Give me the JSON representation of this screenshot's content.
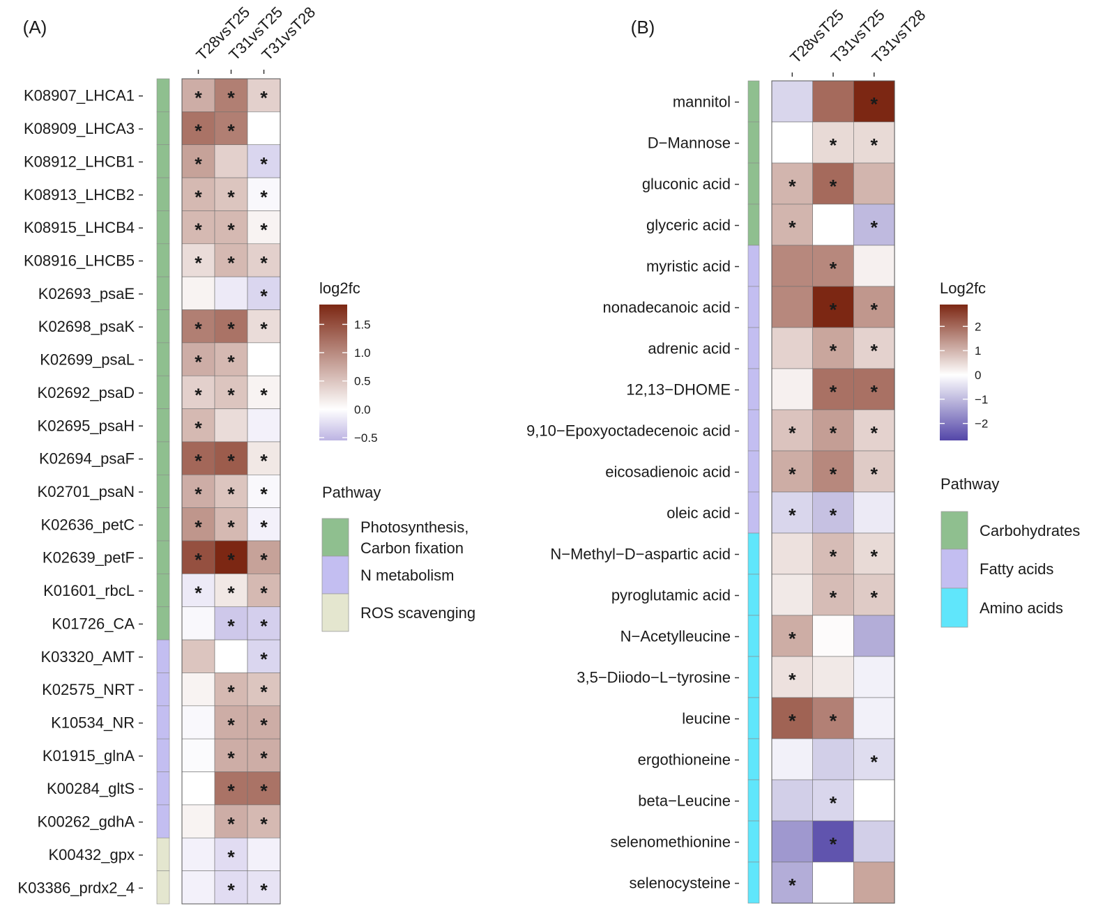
{
  "chart_data": [
    {
      "type": "heatmap",
      "panel_label": "(A)",
      "columns": [
        "T28vsT25",
        "T31vsT25",
        "T31vsT28"
      ],
      "rows": [
        {
          "label": "K08907_LHCA1",
          "pathway": 0,
          "values": [
            0.7,
            1.1,
            0.4
          ],
          "sig": [
            true,
            true,
            true
          ]
        },
        {
          "label": "K08909_LHCA3",
          "pathway": 0,
          "values": [
            1.2,
            1.1,
            0.0
          ],
          "sig": [
            true,
            true,
            false
          ]
        },
        {
          "label": "K08912_LHCB1",
          "pathway": 0,
          "values": [
            0.8,
            0.4,
            -0.3
          ],
          "sig": [
            true,
            false,
            true
          ]
        },
        {
          "label": "K08913_LHCB2",
          "pathway": 0,
          "values": [
            0.6,
            0.5,
            -0.05
          ],
          "sig": [
            true,
            true,
            true
          ]
        },
        {
          "label": "K08915_LHCB4",
          "pathway": 0,
          "values": [
            0.6,
            0.6,
            0.1
          ],
          "sig": [
            true,
            true,
            true
          ]
        },
        {
          "label": "K08916_LHCB5",
          "pathway": 0,
          "values": [
            0.3,
            0.6,
            0.4
          ],
          "sig": [
            true,
            true,
            true
          ]
        },
        {
          "label": "K02693_psaE",
          "pathway": 0,
          "values": [
            0.1,
            -0.15,
            -0.3
          ],
          "sig": [
            false,
            false,
            true
          ]
        },
        {
          "label": "K02698_psaK",
          "pathway": 0,
          "values": [
            1.1,
            1.2,
            0.3
          ],
          "sig": [
            true,
            true,
            true
          ]
        },
        {
          "label": "K02699_psaL",
          "pathway": 0,
          "values": [
            0.7,
            0.6,
            0.0
          ],
          "sig": [
            true,
            true,
            false
          ]
        },
        {
          "label": "K02692_psaD",
          "pathway": 0,
          "values": [
            0.4,
            0.5,
            0.1
          ],
          "sig": [
            true,
            true,
            true
          ]
        },
        {
          "label": "K02695_psaH",
          "pathway": 0,
          "values": [
            0.6,
            0.3,
            -0.1
          ],
          "sig": [
            true,
            false,
            false
          ]
        },
        {
          "label": "K02694_psaF",
          "pathway": 0,
          "values": [
            1.3,
            1.4,
            0.2
          ],
          "sig": [
            true,
            true,
            true
          ]
        },
        {
          "label": "K02701_psaN",
          "pathway": 0,
          "values": [
            0.7,
            0.5,
            -0.05
          ],
          "sig": [
            true,
            true,
            true
          ]
        },
        {
          "label": "K02636_petC",
          "pathway": 0,
          "values": [
            0.9,
            0.6,
            -0.1
          ],
          "sig": [
            true,
            true,
            true
          ]
        },
        {
          "label": "K02639_petF",
          "pathway": 0,
          "values": [
            1.5,
            1.85,
            0.8
          ],
          "sig": [
            true,
            true,
            true
          ]
        },
        {
          "label": "K01601_rbcL",
          "pathway": 0,
          "values": [
            -0.15,
            0.2,
            0.6
          ],
          "sig": [
            true,
            true,
            true
          ]
        },
        {
          "label": "K01726_CA",
          "pathway": 0,
          "values": [
            -0.05,
            -0.4,
            -0.35
          ],
          "sig": [
            false,
            true,
            true
          ]
        },
        {
          "label": "K03320_AMT",
          "pathway": 1,
          "values": [
            0.5,
            0.0,
            -0.3
          ],
          "sig": [
            false,
            false,
            true
          ]
        },
        {
          "label": "K02575_NRT",
          "pathway": 1,
          "values": [
            0.1,
            0.6,
            0.5
          ],
          "sig": [
            false,
            true,
            true
          ]
        },
        {
          "label": "K10534_NR",
          "pathway": 1,
          "values": [
            -0.05,
            0.7,
            0.7
          ],
          "sig": [
            false,
            true,
            true
          ]
        },
        {
          "label": "K01915_glnA",
          "pathway": 1,
          "values": [
            -0.03,
            0.7,
            0.7
          ],
          "sig": [
            false,
            true,
            true
          ]
        },
        {
          "label": "K00284_gltS",
          "pathway": 1,
          "values": [
            0.0,
            1.2,
            1.2
          ],
          "sig": [
            false,
            true,
            true
          ]
        },
        {
          "label": "K00262_gdhA",
          "pathway": 1,
          "values": [
            0.1,
            0.7,
            0.6
          ],
          "sig": [
            false,
            true,
            true
          ]
        },
        {
          "label": "K00432_gpx",
          "pathway": 2,
          "values": [
            -0.1,
            -0.25,
            -0.1
          ],
          "sig": [
            false,
            true,
            false
          ]
        },
        {
          "label": "K03386_prdx2_4",
          "pathway": 2,
          "values": [
            -0.1,
            -0.25,
            -0.2
          ],
          "sig": [
            false,
            true,
            true
          ]
        }
      ],
      "color_scale": {
        "title": "log2fc",
        "low": "#bcb3e2",
        "mid": "#ffffff",
        "high": "#7c2713",
        "domain": [
          -0.55,
          0,
          1.85
        ],
        "ticks": [
          1.5,
          1.0,
          0.5,
          0.0,
          -0.5
        ],
        "tick_labels": [
          "1.5",
          "1.0",
          "0.5",
          "0.0",
          "−0.5"
        ]
      },
      "pathway_legend": {
        "title": "Pathway",
        "entries": [
          {
            "label_lines": [
              "Photosynthesis,",
              "Carbon fixation"
            ],
            "color": "#8fbf8f"
          },
          {
            "label_lines": [
              "N metabolism"
            ],
            "color": "#c3bef1"
          },
          {
            "label_lines": [
              "ROS scavenging"
            ],
            "color": "#e4e6cf"
          }
        ]
      },
      "significance_marker": "*"
    },
    {
      "type": "heatmap",
      "panel_label": "(B)",
      "columns": [
        "T28vsT25",
        "T31vsT25",
        "T31vsT28"
      ],
      "rows": [
        {
          "label": "mannitol",
          "pathway": 0,
          "values": [
            -0.6,
            2.0,
            2.9
          ],
          "sig": [
            false,
            false,
            true
          ]
        },
        {
          "label": "D−Mannose",
          "pathway": 0,
          "values": [
            0.0,
            0.5,
            0.5
          ],
          "sig": [
            false,
            true,
            true
          ]
        },
        {
          "label": "gluconic acid",
          "pathway": 0,
          "values": [
            1.0,
            2.0,
            1.0
          ],
          "sig": [
            true,
            true,
            false
          ]
        },
        {
          "label": "glyceric acid",
          "pathway": 0,
          "values": [
            1.0,
            0.0,
            -1.0
          ],
          "sig": [
            true,
            false,
            true
          ]
        },
        {
          "label": "myristic acid",
          "pathway": 1,
          "values": [
            1.6,
            1.6,
            0.2
          ],
          "sig": [
            false,
            true,
            false
          ]
        },
        {
          "label": "nonadecanoic acid",
          "pathway": 1,
          "values": [
            1.6,
            2.9,
            1.4
          ],
          "sig": [
            false,
            true,
            true
          ]
        },
        {
          "label": "adrenic acid",
          "pathway": 1,
          "values": [
            0.6,
            1.2,
            0.6
          ],
          "sig": [
            false,
            true,
            true
          ]
        },
        {
          "label": "12,13−DHOME",
          "pathway": 1,
          "values": [
            0.2,
            1.9,
            1.9
          ],
          "sig": [
            false,
            true,
            true
          ]
        },
        {
          "label": "9,10−Epoxyoctadecenoic acid",
          "pathway": 1,
          "values": [
            0.8,
            1.3,
            0.6
          ],
          "sig": [
            true,
            true,
            true
          ]
        },
        {
          "label": "eicosadienoic acid",
          "pathway": 1,
          "values": [
            1.1,
            1.6,
            0.7
          ],
          "sig": [
            true,
            true,
            true
          ]
        },
        {
          "label": "oleic acid",
          "pathway": 1,
          "values": [
            -0.6,
            -0.9,
            -0.3
          ],
          "sig": [
            true,
            true,
            false
          ]
        },
        {
          "label": "N−Methyl−D−aspartic acid",
          "pathway": 2,
          "values": [
            0.4,
            0.9,
            0.5
          ],
          "sig": [
            false,
            true,
            true
          ]
        },
        {
          "label": "pyroglutamic acid",
          "pathway": 2,
          "values": [
            0.3,
            0.9,
            0.7
          ],
          "sig": [
            false,
            true,
            true
          ]
        },
        {
          "label": "N−Acetylleucine",
          "pathway": 2,
          "values": [
            1.1,
            0.05,
            -1.2
          ],
          "sig": [
            true,
            false,
            false
          ]
        },
        {
          "label": "3,5−Diiodo−L−tyrosine",
          "pathway": 2,
          "values": [
            0.4,
            0.3,
            -0.2
          ],
          "sig": [
            true,
            false,
            false
          ]
        },
        {
          "label": "leucine",
          "pathway": 2,
          "values": [
            2.1,
            1.7,
            -0.2
          ],
          "sig": [
            true,
            true,
            false
          ]
        },
        {
          "label": "ergothioneine",
          "pathway": 2,
          "values": [
            -0.2,
            -0.7,
            -0.5
          ],
          "sig": [
            false,
            false,
            true
          ]
        },
        {
          "label": "beta−Leucine",
          "pathway": 2,
          "values": [
            -0.7,
            -0.6,
            0.0
          ],
          "sig": [
            false,
            true,
            false
          ]
        },
        {
          "label": "selenomethionine",
          "pathway": 2,
          "values": [
            -1.5,
            -2.5,
            -0.7
          ],
          "sig": [
            false,
            true,
            false
          ]
        },
        {
          "label": "selenocysteine",
          "pathway": 2,
          "values": [
            -1.2,
            0.0,
            1.2
          ],
          "sig": [
            true,
            false,
            false
          ]
        }
      ],
      "color_scale": {
        "title": "Log2fc",
        "low": "#5346a8",
        "mid": "#ffffff",
        "high": "#7c2713",
        "domain": [
          -2.7,
          0,
          2.9
        ],
        "ticks": [
          2,
          1,
          0,
          -1,
          -2
        ],
        "tick_labels": [
          "2",
          "1",
          "0",
          "−1",
          "−2"
        ]
      },
      "pathway_legend": {
        "title": "Pathway",
        "entries": [
          {
            "label_lines": [
              "Carbohydrates"
            ],
            "color": "#8fbf8f"
          },
          {
            "label_lines": [
              "Fatty acids"
            ],
            "color": "#c3bef1"
          },
          {
            "label_lines": [
              "Amino acids"
            ],
            "color": "#60e6fb"
          }
        ]
      },
      "significance_marker": "*"
    }
  ]
}
